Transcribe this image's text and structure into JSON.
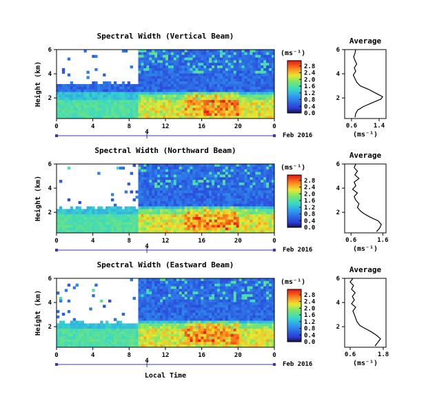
{
  "figure": {
    "date_label": "Feb 2016",
    "day_label": "4",
    "xlabel": "Local Time",
    "ylabel": "Height (km)",
    "unit_label": "(ms⁻¹)",
    "avg_title": "Average"
  },
  "chart_data": [
    {
      "type": "heatmap",
      "title": "Spectral Width (Vertical Beam)",
      "xlabel": "Local Time",
      "ylabel": "Height (km)",
      "x_ticks": [
        "0",
        "4",
        "8",
        "12",
        "16",
        "20",
        "0"
      ],
      "xlim": [
        0,
        24
      ],
      "y_ticks": [
        "2",
        "4",
        "6"
      ],
      "ylim": [
        0.3,
        6
      ],
      "colorbar": {
        "label": "(ms⁻¹)",
        "ticks": [
          "0.0",
          "0.4",
          "0.8",
          "1.2",
          "1.6",
          "2.0",
          "2.4",
          "2.8"
        ],
        "range": [
          0,
          3.0
        ]
      },
      "colors": {
        "low": "#2a3bd6",
        "mid_low": "#2fb5f0",
        "mid": "#38d8a8",
        "mid_high": "#e8e830",
        "high": "#ff3b1a"
      }
    },
    {
      "type": "line",
      "title": "Average",
      "xlabel": "(ms⁻¹)",
      "ylabel": "",
      "x_ticks": [
        "0.6",
        "1.4"
      ],
      "xlim": [
        0.4,
        1.6
      ],
      "y_ticks": [
        "2",
        "4",
        "6"
      ],
      "ylim": [
        0.3,
        6
      ],
      "series": [
        {
          "x": [
            0.7,
            0.72,
            0.78,
            0.95,
            1.2,
            1.45,
            1.5,
            1.3,
            1.1,
            0.85,
            0.75,
            0.7,
            0.65,
            0.72,
            0.68,
            0.75,
            0.7,
            0.66,
            0.7,
            0.72
          ],
          "y": [
            0.4,
            0.7,
            1.0,
            1.3,
            1.6,
            1.9,
            2.1,
            2.4,
            2.7,
            3.0,
            3.3,
            3.6,
            3.9,
            4.2,
            4.5,
            4.8,
            5.1,
            5.4,
            5.7,
            6.0
          ]
        }
      ]
    },
    {
      "type": "heatmap",
      "title": "Spectral Width (Northward Beam)",
      "xlabel": "Local Time",
      "ylabel": "Height (km)",
      "x_ticks": [
        "0",
        "4",
        "8",
        "12",
        "16",
        "20",
        "0"
      ],
      "xlim": [
        0,
        24
      ],
      "y_ticks": [
        "2",
        "4",
        "6"
      ],
      "ylim": [
        0.3,
        6
      ],
      "colorbar": {
        "label": "(ms⁻¹)",
        "ticks": [
          "0.0",
          "0.4",
          "0.8",
          "1.2",
          "1.6",
          "2.0",
          "2.4",
          "2.8"
        ],
        "range": [
          0,
          3.0
        ]
      }
    },
    {
      "type": "line",
      "title": "Average",
      "xlabel": "(ms⁻¹)",
      "ylabel": "",
      "x_ticks": [
        "0.6",
        "1.6"
      ],
      "xlim": [
        0.4,
        1.7
      ],
      "y_ticks": [
        "2",
        "4",
        "6"
      ],
      "ylim": [
        0.3,
        6
      ],
      "series": [
        {
          "x": [
            1.4,
            1.5,
            1.55,
            1.45,
            1.2,
            1.0,
            0.9,
            0.8,
            0.85,
            0.75,
            0.7,
            0.8,
            0.65,
            0.75,
            0.7,
            0.85,
            0.72,
            0.8,
            0.7,
            0.75
          ],
          "y": [
            0.4,
            0.7,
            1.0,
            1.3,
            1.6,
            1.9,
            2.1,
            2.4,
            2.7,
            3.0,
            3.3,
            3.6,
            3.9,
            4.2,
            4.5,
            4.8,
            5.1,
            5.4,
            5.7,
            6.0
          ]
        }
      ]
    },
    {
      "type": "heatmap",
      "title": "Spectral Width (Eastward Beam)",
      "xlabel": "Local Time",
      "ylabel": "Height (km)",
      "x_ticks": [
        "0",
        "4",
        "8",
        "12",
        "16",
        "20",
        "0"
      ],
      "xlim": [
        0,
        24
      ],
      "y_ticks": [
        "2",
        "4",
        "6"
      ],
      "ylim": [
        0.3,
        6
      ],
      "colorbar": {
        "label": "(ms⁻¹)",
        "ticks": [
          "0.0",
          "0.4",
          "0.8",
          "1.2",
          "1.6",
          "2.0",
          "2.4",
          "2.8"
        ],
        "range": [
          0,
          3.0
        ]
      }
    },
    {
      "type": "line",
      "title": "Average",
      "xlabel": "(ms⁻¹)",
      "ylabel": "",
      "x_ticks": [
        "0.6",
        "1.8"
      ],
      "xlim": [
        0.4,
        1.9
      ],
      "y_ticks": [
        "2",
        "4",
        "6"
      ],
      "ylim": [
        0.3,
        6
      ],
      "series": [
        {
          "x": [
            1.5,
            1.6,
            1.7,
            1.55,
            1.35,
            1.1,
            0.95,
            0.85,
            0.8,
            0.75,
            0.7,
            0.8,
            0.65,
            0.75,
            0.68,
            0.78,
            0.65,
            0.72,
            0.6,
            0.7
          ],
          "y": [
            0.4,
            0.7,
            1.0,
            1.3,
            1.6,
            1.9,
            2.1,
            2.4,
            2.7,
            3.0,
            3.3,
            3.6,
            3.9,
            4.2,
            4.5,
            4.8,
            5.1,
            5.4,
            5.7,
            6.0
          ]
        }
      ]
    }
  ]
}
